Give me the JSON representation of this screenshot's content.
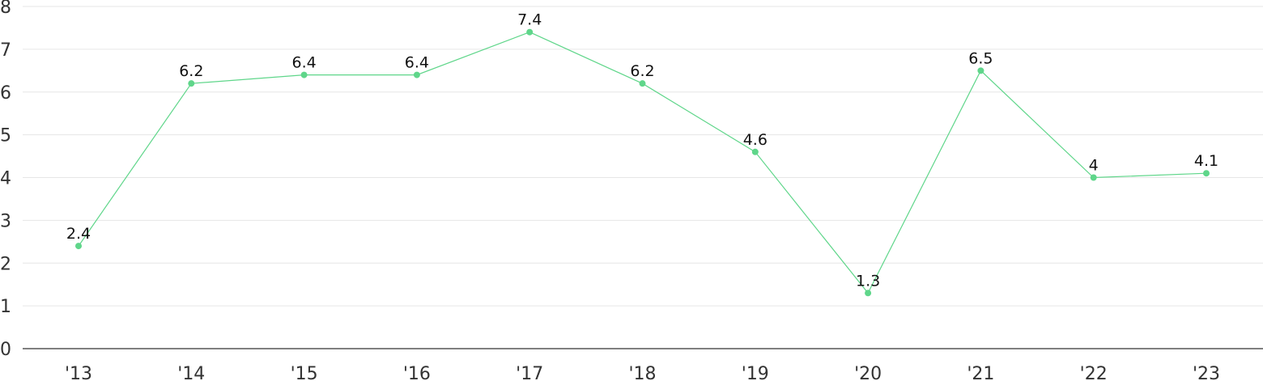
{
  "chart_data": {
    "type": "line",
    "title": "",
    "xlabel": "",
    "ylabel": "",
    "categories": [
      "'13",
      "'14",
      "'15",
      "'16",
      "'17",
      "'18",
      "'19",
      "'20",
      "'21",
      "'22",
      "'23"
    ],
    "series": [
      {
        "values": [
          2.4,
          6.2,
          6.4,
          6.4,
          7.4,
          6.2,
          4.6,
          1.3,
          6.5,
          4,
          4.1
        ],
        "color": "#5fd68a"
      }
    ],
    "ylim": [
      0,
      8
    ],
    "yticks": [
      "0",
      "1",
      "2",
      "3",
      "4",
      "5",
      "6",
      "7",
      "8"
    ],
    "data_labels": [
      "2.4",
      "6.2",
      "6.4",
      "6.4",
      "7.4",
      "6.2",
      "4.6",
      "1.3",
      "6.5",
      "4",
      "4.1"
    ],
    "grid": true,
    "legend": "none",
    "colors": {
      "grid": "#e6e6e6",
      "axis": "#333333"
    }
  }
}
